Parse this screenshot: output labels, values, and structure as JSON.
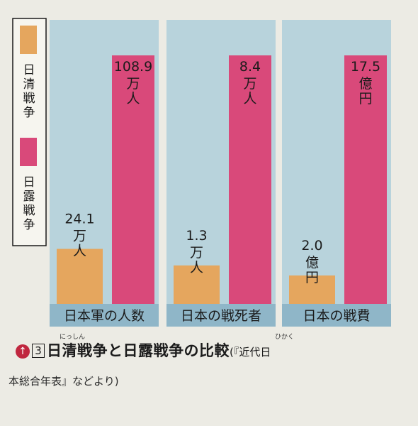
{
  "chart_data": {
    "type": "bar",
    "categories": [
      "日本軍の人数",
      "日本の戦死者",
      "日本の戦費"
    ],
    "series": [
      {
        "name": "日清戦争",
        "color": "#e5a65e",
        "value_labels": [
          "24.1 万人",
          "1.3 万人",
          "2.0 億円"
        ],
        "values": [
          24.1,
          1.3,
          2.0
        ]
      },
      {
        "name": "日露戦争",
        "color": "#d9497a",
        "value_labels": [
          "108.9 万人",
          "8.4 万人",
          "17.5 億円"
        ],
        "values": [
          108.9,
          8.4,
          17.5
        ]
      }
    ],
    "panel_background": "#b8d3dc",
    "category_band_color": "#8fb6c8"
  },
  "caption": {
    "number": "3",
    "title": "日清戦争と日露戦争の比較",
    "title_ruby_1": "にっしん",
    "title_ruby_2": "ひかく",
    "source_part1": "(『近代日",
    "source_part2": "本総合年表』などより)"
  }
}
